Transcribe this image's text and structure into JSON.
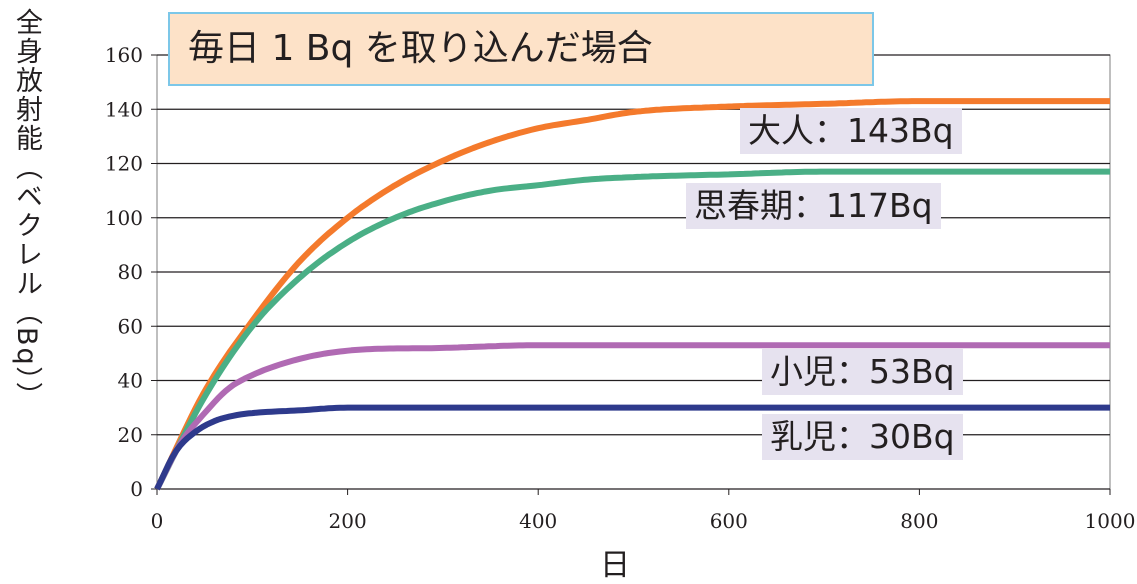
{
  "chart_data": {
    "type": "line",
    "title": "毎日 1 Bq を取り込んだ場合",
    "xlabel": "日",
    "ylabel": "全身放射能（ベクレル（Bq））",
    "xlim": [
      0,
      1000
    ],
    "ylim": [
      0,
      160
    ],
    "xticks": [
      "0",
      "200",
      "400",
      "600",
      "800",
      "1000"
    ],
    "yticks": [
      "0",
      "20",
      "40",
      "60",
      "80",
      "100",
      "120",
      "140",
      "160"
    ],
    "grid": "horizontal",
    "series": [
      {
        "name": "大人",
        "label": "大人：143Bq",
        "color": "#f47a2c",
        "x": [
          0,
          50,
          100,
          150,
          200,
          250,
          300,
          350,
          400,
          450,
          500,
          600,
          700,
          800,
          900,
          1000
        ],
        "values": [
          0,
          36,
          62,
          84,
          100,
          112,
          121,
          128,
          133,
          136,
          139,
          141,
          142,
          143,
          143,
          143
        ]
      },
      {
        "name": "思春期",
        "label": "思春期：117Bq",
        "color": "#4aaf86",
        "x": [
          0,
          50,
          100,
          150,
          200,
          250,
          300,
          350,
          400,
          450,
          500,
          600,
          700,
          800,
          900,
          1000
        ],
        "values": [
          0,
          34,
          60,
          78,
          91,
          100,
          106,
          110,
          112,
          114,
          115,
          116,
          117,
          117,
          117,
          117
        ]
      },
      {
        "name": "小児",
        "label": "小児：53Bq",
        "color": "#b06ab3",
        "x": [
          0,
          25,
          50,
          75,
          100,
          150,
          200,
          300,
          400,
          500,
          600,
          800,
          1000
        ],
        "values": [
          0,
          17,
          28,
          37,
          42,
          48,
          51,
          52,
          53,
          53,
          53,
          53,
          53
        ]
      },
      {
        "name": "乳児",
        "label": "乳児：30Bq",
        "color": "#2e3a8c",
        "x": [
          0,
          20,
          40,
          60,
          80,
          100,
          150,
          200,
          300,
          400,
          600,
          800,
          1000
        ],
        "values": [
          0,
          14,
          21,
          25,
          27,
          28,
          29,
          30,
          30,
          30,
          30,
          30,
          30
        ]
      }
    ]
  }
}
